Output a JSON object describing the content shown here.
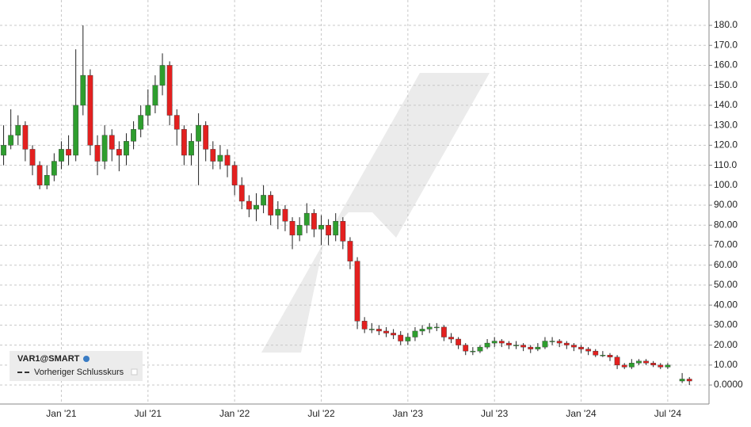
{
  "chart_data": {
    "type": "candlestick",
    "legend_title": "VAR1@SMART",
    "legend_note": "Vorheriger Schlusskurs",
    "up_color": "#2e9e2e",
    "down_color": "#e3201f",
    "categories": [
      null,
      null,
      null,
      null,
      null,
      null,
      null,
      null,
      "Jan '21",
      null,
      null,
      null,
      null,
      null,
      null,
      null,
      null,
      null,
      null,
      null,
      "Jul '21",
      null,
      null,
      null,
      null,
      null,
      null,
      null,
      null,
      null,
      null,
      null,
      "Jan '22",
      null,
      null,
      null,
      null,
      null,
      null,
      null,
      null,
      null,
      null,
      null,
      "Jul '22",
      null,
      null,
      null,
      null,
      null,
      null,
      null,
      null,
      null,
      null,
      null,
      "Jan '23",
      null,
      null,
      null,
      null,
      null,
      null,
      null,
      null,
      null,
      null,
      null,
      "Jul '23",
      null,
      null,
      null,
      null,
      null,
      null,
      null,
      null,
      null,
      null,
      null,
      "Jan '24",
      null,
      null,
      null,
      null,
      null,
      null,
      null,
      null,
      null,
      null,
      null,
      "Jul '24",
      null,
      null,
      null,
      null,
      null
    ],
    "open": [
      115,
      120,
      125,
      130,
      118,
      110,
      100,
      105,
      112,
      118,
      115,
      140,
      155,
      120,
      112,
      125,
      118,
      115,
      122,
      128,
      135,
      140,
      150,
      160,
      135,
      128,
      115,
      122,
      130,
      118,
      112,
      115,
      110,
      100,
      92,
      88,
      90,
      95,
      85,
      88,
      82,
      75,
      80,
      86,
      78,
      80,
      75,
      82,
      72,
      62,
      32,
      28,
      28,
      27,
      26,
      25,
      22,
      24,
      27,
      28,
      29,
      29,
      24,
      23,
      20,
      17,
      17,
      19,
      21,
      22,
      21,
      20,
      20,
      19,
      18,
      19,
      22,
      22,
      21,
      20,
      19,
      18,
      17,
      15,
      15,
      14,
      10,
      9,
      11,
      12,
      11,
      10,
      9,
      null,
      2,
      3,
      null,
      null
    ],
    "high": [
      130,
      138,
      135,
      132,
      120,
      112,
      110,
      116,
      122,
      125,
      168,
      180,
      158,
      125,
      130,
      128,
      122,
      126,
      132,
      140,
      148,
      155,
      166,
      162,
      138,
      130,
      126,
      136,
      132,
      122,
      120,
      118,
      112,
      104,
      95,
      96,
      100,
      97,
      92,
      90,
      84,
      84,
      91,
      88,
      85,
      83,
      86,
      84,
      74,
      64,
      34,
      31,
      30,
      29,
      28,
      27,
      26,
      29,
      30,
      31,
      31,
      30,
      26,
      24,
      21,
      19,
      20,
      23,
      24,
      23,
      22,
      22,
      21,
      20,
      21,
      24,
      24,
      23,
      22,
      21,
      20,
      19,
      18,
      17,
      16,
      15,
      11,
      13,
      13,
      13,
      12,
      11,
      11,
      null,
      6,
      4,
      null,
      null
    ],
    "low": [
      110,
      118,
      120,
      112,
      105,
      98,
      98,
      102,
      108,
      110,
      112,
      135,
      115,
      105,
      108,
      112,
      107,
      110,
      118,
      124,
      130,
      136,
      145,
      130,
      120,
      110,
      110,
      100,
      112,
      108,
      108,
      104,
      95,
      88,
      84,
      82,
      86,
      80,
      78,
      77,
      68,
      72,
      76,
      74,
      70,
      70,
      72,
      68,
      58,
      28,
      26,
      26,
      25,
      24,
      23,
      20,
      20,
      22,
      25,
      26,
      27,
      22,
      21,
      18,
      15,
      15,
      16,
      18,
      19,
      19,
      18,
      18,
      17,
      16,
      17,
      18,
      20,
      19,
      18,
      17,
      16,
      15,
      14,
      14,
      12,
      8,
      8,
      8,
      10,
      10,
      9,
      8,
      8,
      null,
      1,
      0,
      null,
      null
    ],
    "close": [
      120,
      125,
      130,
      118,
      110,
      100,
      105,
      112,
      118,
      115,
      140,
      155,
      120,
      112,
      125,
      118,
      115,
      122,
      128,
      135,
      140,
      150,
      160,
      135,
      128,
      115,
      122,
      130,
      118,
      112,
      115,
      110,
      100,
      92,
      88,
      90,
      95,
      85,
      88,
      82,
      75,
      80,
      86,
      78,
      80,
      75,
      82,
      72,
      62,
      32,
      28,
      28,
      27,
      26,
      25,
      22,
      24,
      27,
      28,
      29,
      29,
      24,
      23,
      20,
      17,
      17,
      19,
      21,
      22,
      21,
      20,
      20,
      19,
      18,
      19,
      22,
      22,
      21,
      20,
      19,
      18,
      17,
      15,
      15,
      14,
      10,
      9,
      11,
      12,
      11,
      10,
      9,
      10,
      null,
      3,
      2,
      null,
      null
    ],
    "ylim": [
      -9.5,
      192.7
    ],
    "yticks": [
      {
        "value": 0,
        "label": "0.0000"
      },
      {
        "value": 10,
        "label": "10.00"
      },
      {
        "value": 20,
        "label": "20.00"
      },
      {
        "value": 30,
        "label": "30.00"
      },
      {
        "value": 40,
        "label": "40.00"
      },
      {
        "value": 50,
        "label": "50.00"
      },
      {
        "value": 60,
        "label": "60.00"
      },
      {
        "value": 70,
        "label": "70.00"
      },
      {
        "value": 80,
        "label": "80.00"
      },
      {
        "value": 90,
        "label": "90.00"
      },
      {
        "value": 100,
        "label": "100.0"
      },
      {
        "value": 110,
        "label": "110.0"
      },
      {
        "value": 120,
        "label": "120.0"
      },
      {
        "value": 130,
        "label": "130.0"
      },
      {
        "value": 140,
        "label": "140.0"
      },
      {
        "value": 150,
        "label": "150.0"
      },
      {
        "value": 160,
        "label": "160.0"
      },
      {
        "value": 170,
        "label": "170.0"
      },
      {
        "value": 180,
        "label": "180.0"
      }
    ],
    "grid": true
  }
}
